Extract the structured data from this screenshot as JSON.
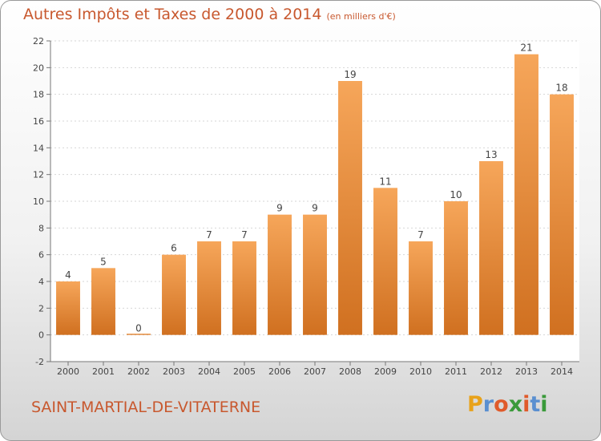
{
  "title": "Autres Impôts et Taxes de 2000 à 2014",
  "unit_note": "(en milliers d'€)",
  "commune": "SAINT-MARTIAL-DE-VITATERNE",
  "logo": {
    "letters": [
      "P",
      "r",
      "o",
      "x",
      "i",
      "t",
      "i"
    ],
    "colors": [
      "#e8a21a",
      "#5a8fd0",
      "#e05a2a",
      "#3a9a3a",
      "#e05a2a",
      "#5a8fd0",
      "#3a9a3a"
    ]
  },
  "colors": {
    "accent": "#c8582e",
    "bar_top": "#f6a65a",
    "bar_bottom": "#d07020"
  },
  "chart_data": {
    "type": "bar",
    "categories": [
      "2000",
      "2001",
      "2002",
      "2003",
      "2004",
      "2005",
      "2006",
      "2007",
      "2008",
      "2009",
      "2010",
      "2011",
      "2012",
      "2013",
      "2014"
    ],
    "values": [
      4,
      5,
      0,
      6,
      7,
      7,
      9,
      9,
      19,
      11,
      7,
      10,
      13,
      21,
      18
    ],
    "ylim": [
      -2,
      22
    ],
    "yticks": [
      -2,
      0,
      2,
      4,
      6,
      8,
      10,
      12,
      14,
      16,
      18,
      20,
      22
    ],
    "grid": true
  }
}
